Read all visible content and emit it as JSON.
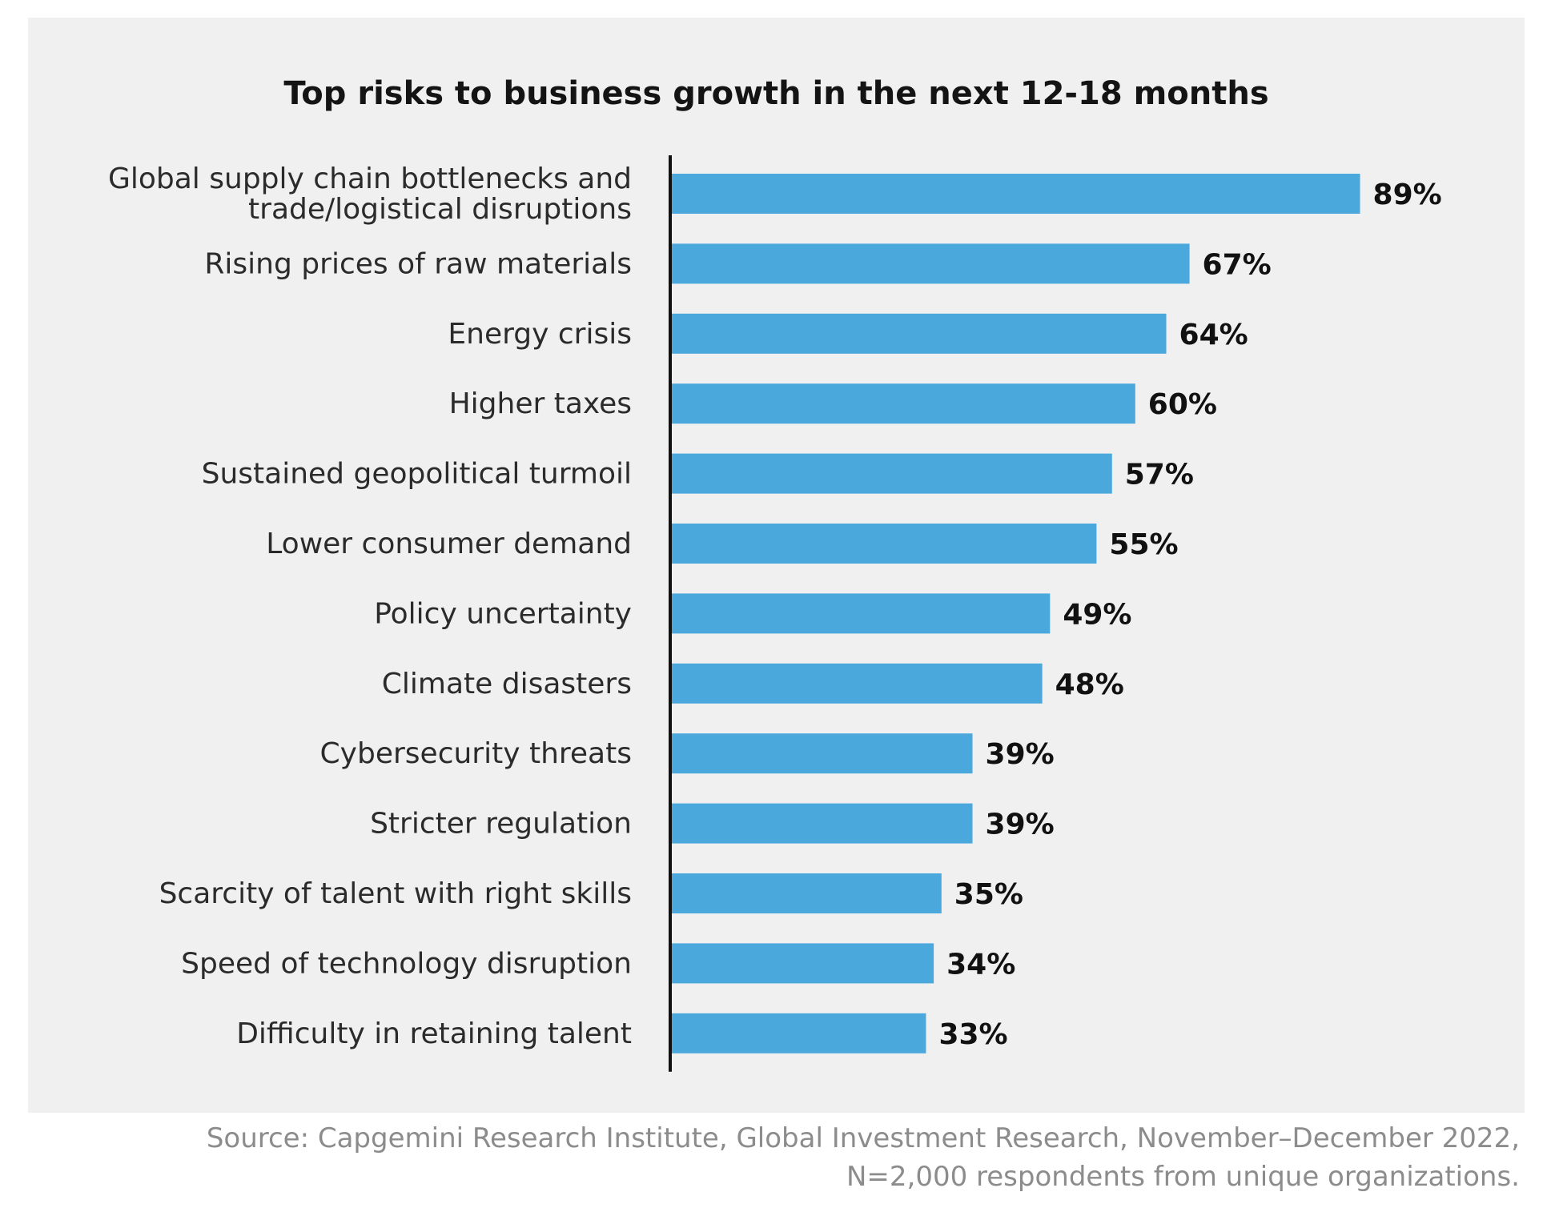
{
  "chart_data": {
    "type": "bar",
    "orientation": "horizontal",
    "title": "Top risks to business growth in the next 12-18 months",
    "xlabel": "",
    "ylabel": "",
    "xlim": [
      0,
      100
    ],
    "grid": false,
    "value_suffix": "%",
    "categories": [
      [
        "Global supply chain bottlenecks and",
        "trade/logistical disruptions"
      ],
      [
        "Rising prices of raw materials"
      ],
      [
        "Energy crisis"
      ],
      [
        "Higher taxes"
      ],
      [
        "Sustained geopolitical turmoil"
      ],
      [
        "Lower consumer demand"
      ],
      [
        "Policy uncertainty"
      ],
      [
        "Climate disasters"
      ],
      [
        "Cybersecurity threats"
      ],
      [
        "Stricter regulation"
      ],
      [
        "Scarcity of talent with right skills"
      ],
      [
        "Speed of technology disruption"
      ],
      [
        "Difficulty in retaining talent"
      ]
    ],
    "values": [
      89,
      67,
      64,
      60,
      57,
      55,
      49,
      48,
      39,
      39,
      35,
      34,
      33
    ],
    "value_labels": [
      "89%",
      "67%",
      "64%",
      "60%",
      "57%",
      "55%",
      "49%",
      "48%",
      "39%",
      "39%",
      "35%",
      "34%",
      "33%"
    ],
    "bar_color": "#4aa8dc",
    "axis_color": "#111111",
    "background_color": "#f0f0f0"
  },
  "source": {
    "line1": "Source: Capgemini Research Institute, Global Investment Research, November–December 2022,",
    "line2": "N=2,000 respondents from unique organizations."
  }
}
